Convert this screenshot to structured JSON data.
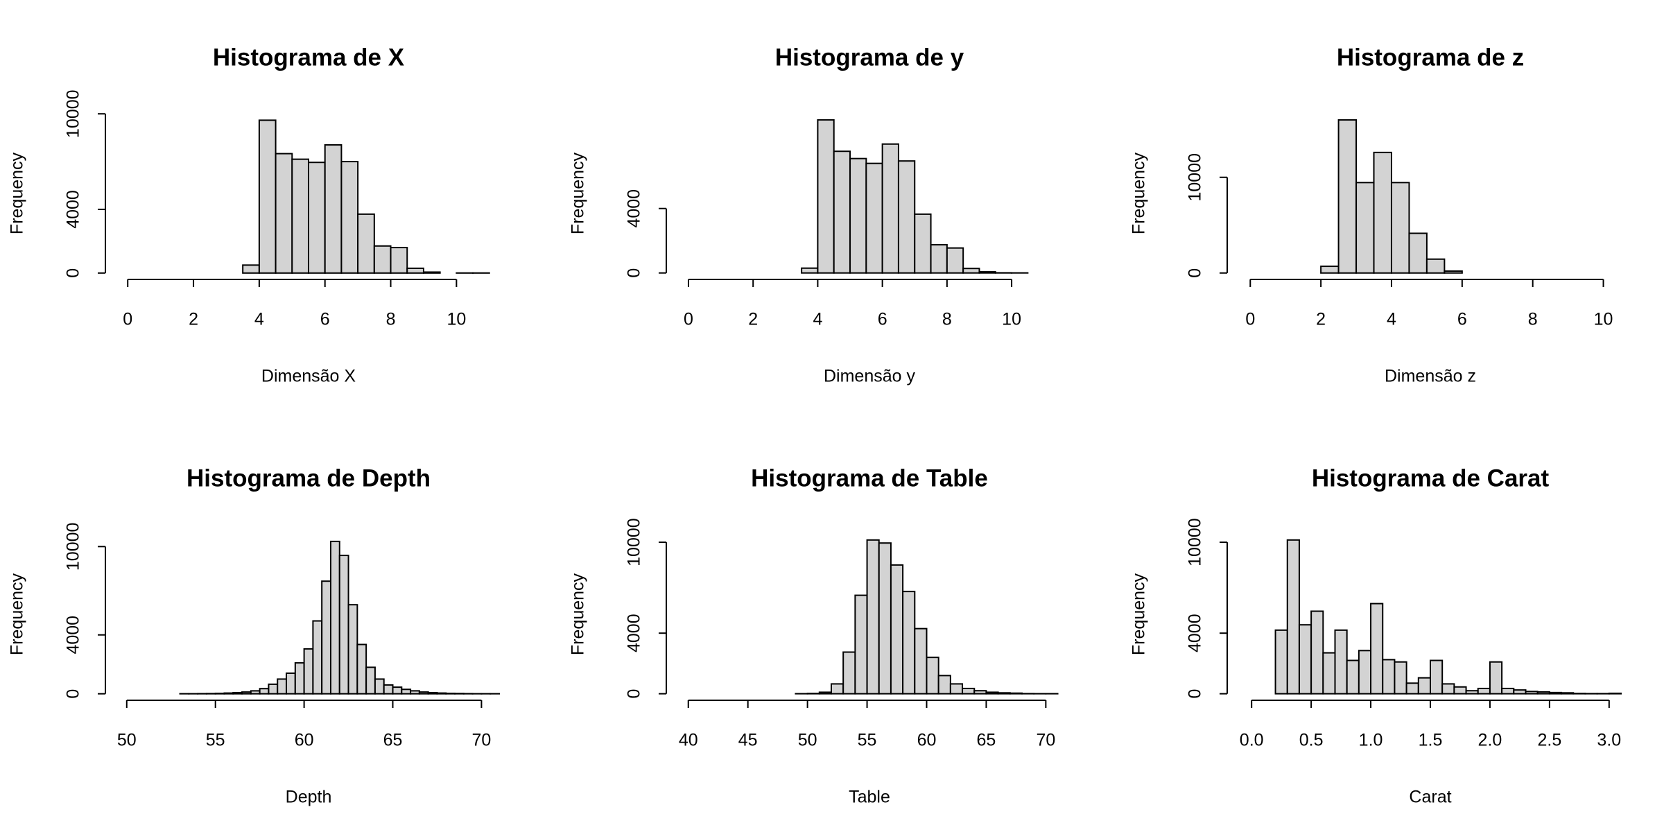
{
  "chart_data": [
    {
      "type": "histogram",
      "title": "Histograma de X",
      "xlabel": "Dimensão X",
      "ylabel": "Frequency",
      "color": "#d3d3d3",
      "bins": [
        0,
        0.5,
        1,
        1.5,
        2,
        2.5,
        3,
        3.5,
        4,
        4.5,
        5,
        5.5,
        6,
        6.5,
        7,
        7.5,
        8,
        8.5,
        9,
        9.5,
        10,
        10.5,
        11
      ],
      "counts": [
        0,
        0,
        0,
        0,
        0,
        0,
        0,
        500,
        9600,
        7500,
        7150,
        6950,
        8050,
        7000,
        3700,
        1700,
        1600,
        300,
        60,
        0,
        5,
        5
      ],
      "xlim": [
        -0.3,
        11.3
      ],
      "ylim": [
        -400,
        10400
      ],
      "xticks": [
        0,
        2,
        4,
        6,
        8,
        10
      ],
      "yticks": [
        0,
        4000,
        10000
      ]
    },
    {
      "type": "histogram",
      "title": "Histograma de y",
      "xlabel": "Dimensão y",
      "ylabel": "Frequency",
      "color": "#d3d3d3",
      "bins": [
        0,
        0.5,
        1,
        1.5,
        2,
        2.5,
        3,
        3.5,
        4,
        4.5,
        5,
        5.5,
        6,
        6.5,
        7,
        7.5,
        8,
        8.5,
        9,
        9.5,
        10,
        10.5,
        11,
        11.5
      ],
      "counts": [
        0,
        0,
        0,
        0,
        0,
        0,
        0,
        300,
        9500,
        7550,
        7100,
        6800,
        8000,
        6950,
        3650,
        1750,
        1550,
        280,
        70,
        10,
        5,
        0,
        0
      ],
      "xlim": [
        -0.3,
        11.5
      ],
      "ylim": [
        -400,
        10270
      ],
      "xticks": [
        0,
        2,
        4,
        6,
        8,
        10
      ],
      "yticks": [
        0,
        4000
      ]
    },
    {
      "type": "histogram",
      "title": "Histograma de z",
      "xlabel": "Dimensão z",
      "ylabel": "Frequency",
      "color": "#d3d3d3",
      "bins": [
        0,
        0.5,
        1,
        1.5,
        2,
        2.5,
        3,
        3.5,
        4,
        4.5,
        5,
        5.5,
        6,
        6.5,
        7,
        7.5,
        8,
        8.5,
        9,
        9.5,
        10,
        10.5
      ],
      "counts": [
        0,
        0,
        0,
        0,
        700,
        16000,
        9450,
        12600,
        9450,
        4150,
        1450,
        200,
        0,
        0,
        0,
        0,
        0,
        0,
        0,
        0,
        0
      ],
      "xlim": [
        -0.3,
        10.5
      ],
      "ylim": [
        -670,
        17300
      ],
      "xticks": [
        0,
        2,
        4,
        6,
        8,
        10
      ],
      "yticks": [
        0,
        10000
      ]
    },
    {
      "type": "histogram",
      "title": "Histograma de Depth",
      "xlabel": "Depth",
      "ylabel": "Frequency",
      "color": "#d3d3d3",
      "bins": [
        50,
        50.5,
        51,
        51.5,
        52,
        52.5,
        53,
        53.5,
        54,
        54.5,
        55,
        55.5,
        56,
        56.5,
        57,
        57.5,
        58,
        58.5,
        59,
        59.5,
        60,
        60.5,
        61,
        61.5,
        62,
        62.5,
        63,
        63.5,
        64,
        64.5,
        65,
        65.5,
        66,
        66.5,
        67,
        67.5,
        68,
        68.5,
        69,
        69.5,
        70,
        70.5,
        71
      ],
      "counts": [
        0,
        0,
        0,
        0,
        0,
        0,
        5,
        5,
        10,
        15,
        30,
        50,
        80,
        120,
        200,
        350,
        650,
        1000,
        1400,
        2100,
        3050,
        4950,
        7650,
        10350,
        9400,
        6050,
        3350,
        1800,
        1000,
        600,
        450,
        300,
        200,
        120,
        80,
        50,
        30,
        20,
        10,
        5,
        5,
        5
      ],
      "xlim": [
        49.5,
        71
      ],
      "ylim": [
        -440,
        11240
      ],
      "xticks": [
        50,
        55,
        60,
        65,
        70
      ],
      "yticks": [
        0,
        4000,
        10000
      ]
    },
    {
      "type": "histogram",
      "title": "Histograma de Table",
      "xlabel": "Table",
      "ylabel": "Frequency",
      "color": "#d3d3d3",
      "bins": [
        43,
        44,
        45,
        46,
        47,
        48,
        49,
        50,
        51,
        52,
        53,
        54,
        55,
        56,
        57,
        58,
        59,
        60,
        61,
        62,
        63,
        64,
        65,
        66,
        67,
        68,
        69,
        70,
        71
      ],
      "counts": [
        0,
        0,
        0,
        0,
        0,
        0,
        5,
        20,
        100,
        650,
        2750,
        6500,
        10150,
        9950,
        8500,
        6750,
        4300,
        2400,
        1200,
        650,
        350,
        200,
        100,
        60,
        40,
        10,
        5,
        5
      ],
      "xlim": [
        39.2,
        71.2
      ],
      "ylim": [
        -430,
        10920
      ],
      "xticks": [
        40,
        45,
        50,
        55,
        60,
        65,
        70
      ],
      "yticks": [
        0,
        4000,
        10000
      ]
    },
    {
      "type": "histogram",
      "title": "Histograma de Carat",
      "xlabel": "Carat",
      "ylabel": "Frequency",
      "color": "#d3d3d3",
      "bins": [
        0.2,
        0.3,
        0.4,
        0.5,
        0.6,
        0.7,
        0.8,
        0.9,
        1.0,
        1.1,
        1.2,
        1.3,
        1.4,
        1.5,
        1.6,
        1.7,
        1.8,
        1.9,
        2.0,
        2.1,
        2.2,
        2.3,
        2.4,
        2.5,
        2.6,
        2.7,
        2.8,
        2.9,
        3.0,
        3.1
      ],
      "counts": [
        4200,
        10150,
        4550,
        5450,
        2700,
        4200,
        2200,
        2850,
        5950,
        2250,
        2100,
        700,
        1050,
        2200,
        650,
        450,
        200,
        350,
        2100,
        350,
        250,
        150,
        120,
        80,
        60,
        20,
        10,
        10,
        30
      ],
      "xlim": [
        -0.1,
        3.1
      ],
      "ylim": [
        -430,
        10920
      ],
      "xticks": [
        {
          "value": 0,
          "label": "0.0"
        },
        0.5,
        {
          "value": 1,
          "label": "1.0"
        },
        1.5,
        {
          "value": 2,
          "label": "2.0"
        },
        2.5,
        {
          "value": 3,
          "label": "3.0"
        }
      ],
      "yticks": [
        0,
        4000,
        10000
      ]
    }
  ]
}
